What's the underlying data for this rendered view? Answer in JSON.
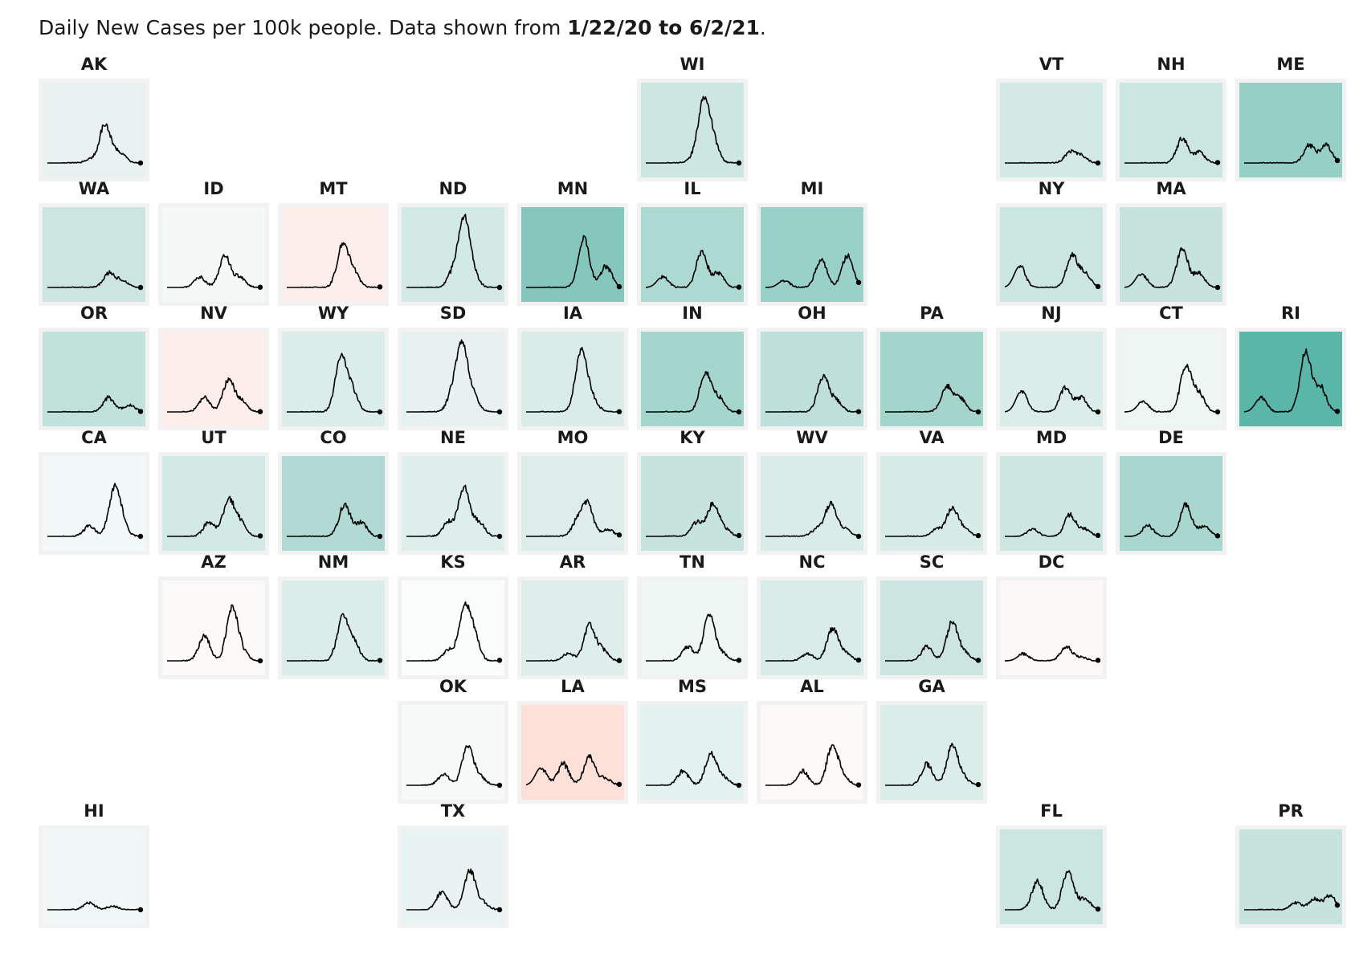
{
  "header": {
    "prefix": "Daily New Cases per 100k people. Data shown from ",
    "range": "1/22/20 to 6/2/21",
    "suffix": "."
  },
  "chart_data": {
    "type": "line",
    "layout": "tile-grid-map",
    "x_start": "1/22/20",
    "x_end": "6/2/21",
    "ylabel": "Daily New Cases per 100k people",
    "states": [
      {
        "id": "AK",
        "row": 0,
        "col": 0,
        "bg": "#e8f3f1",
        "peaks": [
          [
            0.46,
            0.05
          ],
          [
            0.62,
            0.55
          ],
          [
            0.78,
            0.15
          ]
        ]
      },
      {
        "id": "WI",
        "row": 0,
        "col": 5,
        "bg": "#cde6e1",
        "peaks": [
          [
            0.5,
            0.05
          ],
          [
            0.62,
            0.85
          ],
          [
            0.72,
            0.3
          ]
        ]
      },
      {
        "id": "VT",
        "row": 0,
        "col": 8,
        "bg": "#d3e9e5",
        "peaks": [
          [
            0.7,
            0.15
          ],
          [
            0.82,
            0.1
          ]
        ]
      },
      {
        "id": "NH",
        "row": 0,
        "col": 9,
        "bg": "#cbe5e0",
        "peaks": [
          [
            0.62,
            0.35
          ],
          [
            0.8,
            0.15
          ]
        ]
      },
      {
        "id": "ME",
        "row": 0,
        "col": 10,
        "bg": "#96cfc6",
        "peaks": [
          [
            0.7,
            0.25
          ],
          [
            0.88,
            0.25
          ]
        ]
      },
      {
        "id": "WA",
        "row": 1,
        "col": 0,
        "bg": "#cce5e0",
        "peaks": [
          [
            0.66,
            0.2
          ],
          [
            0.8,
            0.1
          ]
        ]
      },
      {
        "id": "ID",
        "row": 1,
        "col": 1,
        "bg": "#f4f9f8",
        "peaks": [
          [
            0.35,
            0.15
          ],
          [
            0.62,
            0.45
          ],
          [
            0.78,
            0.15
          ]
        ]
      },
      {
        "id": "MT",
        "row": 1,
        "col": 2,
        "bg": "#fdeeea",
        "peaks": [
          [
            0.6,
            0.6
          ],
          [
            0.72,
            0.2
          ]
        ]
      },
      {
        "id": "ND",
        "row": 1,
        "col": 3,
        "bg": "#d3e9e5",
        "peaks": [
          [
            0.5,
            0.2
          ],
          [
            0.62,
            0.95
          ],
          [
            0.72,
            0.15
          ]
        ]
      },
      {
        "id": "MN",
        "row": 1,
        "col": 4,
        "bg": "#85c7bd",
        "peaks": [
          [
            0.62,
            0.7
          ],
          [
            0.86,
            0.3
          ]
        ]
      },
      {
        "id": "IL",
        "row": 1,
        "col": 5,
        "bg": "#acd9d1",
        "peaks": [
          [
            0.18,
            0.15
          ],
          [
            0.6,
            0.5
          ],
          [
            0.78,
            0.2
          ]
        ]
      },
      {
        "id": "MI",
        "row": 1,
        "col": 6,
        "bg": "#99d1c8",
        "peaks": [
          [
            0.2,
            0.1
          ],
          [
            0.6,
            0.4
          ],
          [
            0.88,
            0.45
          ]
        ]
      },
      {
        "id": "NY",
        "row": 1,
        "col": 8,
        "bg": "#cbe5e0",
        "peaks": [
          [
            0.16,
            0.3
          ],
          [
            0.72,
            0.45
          ],
          [
            0.86,
            0.2
          ]
        ]
      },
      {
        "id": "MA",
        "row": 1,
        "col": 9,
        "bg": "#c6e3de",
        "peaks": [
          [
            0.18,
            0.2
          ],
          [
            0.62,
            0.55
          ],
          [
            0.8,
            0.2
          ]
        ]
      },
      {
        "id": "OR",
        "row": 2,
        "col": 0,
        "bg": "#c1e1db",
        "peaks": [
          [
            0.66,
            0.2
          ],
          [
            0.88,
            0.1
          ]
        ]
      },
      {
        "id": "NV",
        "row": 2,
        "col": 1,
        "bg": "#fdeeea",
        "peaks": [
          [
            0.4,
            0.2
          ],
          [
            0.66,
            0.45
          ],
          [
            0.8,
            0.15
          ]
        ]
      },
      {
        "id": "WY",
        "row": 2,
        "col": 2,
        "bg": "#dbede9",
        "peaks": [
          [
            0.58,
            0.75
          ],
          [
            0.7,
            0.3
          ]
        ]
      },
      {
        "id": "SD",
        "row": 2,
        "col": 3,
        "bg": "#e7f2f0",
        "peaks": [
          [
            0.5,
            0.25
          ],
          [
            0.6,
            0.9
          ],
          [
            0.72,
            0.2
          ]
        ]
      },
      {
        "id": "IA",
        "row": 2,
        "col": 4,
        "bg": "#d9ece8",
        "peaks": [
          [
            0.55,
            0.15
          ],
          [
            0.6,
            0.75
          ],
          [
            0.72,
            0.15
          ]
        ]
      },
      {
        "id": "IN",
        "row": 2,
        "col": 5,
        "bg": "#a5d6ce",
        "peaks": [
          [
            0.64,
            0.55
          ],
          [
            0.78,
            0.2
          ]
        ]
      },
      {
        "id": "OH",
        "row": 2,
        "col": 6,
        "bg": "#bfe0da",
        "peaks": [
          [
            0.62,
            0.5
          ],
          [
            0.76,
            0.15
          ]
        ]
      },
      {
        "id": "PA",
        "row": 2,
        "col": 7,
        "bg": "#a3d5cd",
        "peaks": [
          [
            0.66,
            0.35
          ],
          [
            0.8,
            0.2
          ]
        ]
      },
      {
        "id": "NJ",
        "row": 2,
        "col": 8,
        "bg": "#dbede9",
        "peaks": [
          [
            0.18,
            0.3
          ],
          [
            0.65,
            0.35
          ],
          [
            0.82,
            0.2
          ]
        ]
      },
      {
        "id": "CT",
        "row": 2,
        "col": 9,
        "bg": "#eef6f4",
        "peaks": [
          [
            0.2,
            0.15
          ],
          [
            0.66,
            0.65
          ],
          [
            0.8,
            0.25
          ]
        ]
      },
      {
        "id": "RI",
        "row": 2,
        "col": 10,
        "bg": "#5ab6a9",
        "peaks": [
          [
            0.18,
            0.2
          ],
          [
            0.66,
            0.85
          ],
          [
            0.82,
            0.35
          ]
        ]
      },
      {
        "id": "CA",
        "row": 3,
        "col": 0,
        "bg": "#f3f9f8",
        "peaks": [
          [
            0.45,
            0.15
          ],
          [
            0.72,
            0.65
          ],
          [
            0.8,
            0.15
          ]
        ]
      },
      {
        "id": "UT",
        "row": 3,
        "col": 1,
        "bg": "#d3e9e5",
        "peaks": [
          [
            0.45,
            0.2
          ],
          [
            0.66,
            0.5
          ],
          [
            0.78,
            0.2
          ]
        ]
      },
      {
        "id": "CO",
        "row": 3,
        "col": 2,
        "bg": "#b0dad3",
        "peaks": [
          [
            0.62,
            0.45
          ],
          [
            0.8,
            0.2
          ]
        ]
      },
      {
        "id": "NE",
        "row": 3,
        "col": 3,
        "bg": "#deeeeb",
        "peaks": [
          [
            0.45,
            0.2
          ],
          [
            0.62,
            0.7
          ],
          [
            0.78,
            0.2
          ]
        ]
      },
      {
        "id": "MO",
        "row": 3,
        "col": 4,
        "bg": "#dcedea",
        "peaks": [
          [
            0.55,
            0.2
          ],
          [
            0.66,
            0.45
          ],
          [
            0.88,
            0.1
          ]
        ]
      },
      {
        "id": "KY",
        "row": 3,
        "col": 5,
        "bg": "#c6e3de",
        "peaks": [
          [
            0.55,
            0.2
          ],
          [
            0.72,
            0.45
          ],
          [
            0.85,
            0.1
          ]
        ]
      },
      {
        "id": "WV",
        "row": 3,
        "col": 6,
        "bg": "#d9ece8",
        "peaks": [
          [
            0.55,
            0.1
          ],
          [
            0.7,
            0.45
          ],
          [
            0.85,
            0.1
          ]
        ]
      },
      {
        "id": "VA",
        "row": 3,
        "col": 7,
        "bg": "#d7ebe7",
        "peaks": [
          [
            0.55,
            0.1
          ],
          [
            0.72,
            0.4
          ],
          [
            0.85,
            0.1
          ]
        ]
      },
      {
        "id": "MD",
        "row": 3,
        "col": 8,
        "bg": "#cde6e1",
        "peaks": [
          [
            0.3,
            0.1
          ],
          [
            0.7,
            0.3
          ],
          [
            0.86,
            0.1
          ]
        ]
      },
      {
        "id": "DE",
        "row": 3,
        "col": 9,
        "bg": "#a8d7cf",
        "peaks": [
          [
            0.25,
            0.15
          ],
          [
            0.66,
            0.45
          ],
          [
            0.86,
            0.15
          ]
        ]
      },
      {
        "id": "AZ",
        "row": 4,
        "col": 1,
        "bg": "#fcf9f9",
        "peaks": [
          [
            0.4,
            0.35
          ],
          [
            0.7,
            0.75
          ],
          [
            0.82,
            0.1
          ]
        ]
      },
      {
        "id": "NM",
        "row": 4,
        "col": 2,
        "bg": "#dbede9",
        "peaks": [
          [
            0.6,
            0.6
          ],
          [
            0.72,
            0.25
          ]
        ]
      },
      {
        "id": "KS",
        "row": 4,
        "col": 3,
        "bg": "#fbfcfc",
        "peaks": [
          [
            0.45,
            0.15
          ],
          [
            0.62,
            0.7
          ],
          [
            0.72,
            0.35
          ]
        ]
      },
      {
        "id": "AR",
        "row": 4,
        "col": 4,
        "bg": "#ddeeeb",
        "peaks": [
          [
            0.45,
            0.1
          ],
          [
            0.68,
            0.5
          ],
          [
            0.82,
            0.15
          ]
        ]
      },
      {
        "id": "TN",
        "row": 4,
        "col": 5,
        "bg": "#eff7f5",
        "peaks": [
          [
            0.45,
            0.2
          ],
          [
            0.68,
            0.65
          ],
          [
            0.82,
            0.1
          ]
        ]
      },
      {
        "id": "NC",
        "row": 4,
        "col": 6,
        "bg": "#d9ece8",
        "peaks": [
          [
            0.45,
            0.1
          ],
          [
            0.72,
            0.45
          ],
          [
            0.86,
            0.1
          ]
        ]
      },
      {
        "id": "SC",
        "row": 4,
        "col": 7,
        "bg": "#cce5e0",
        "peaks": [
          [
            0.45,
            0.2
          ],
          [
            0.72,
            0.55
          ],
          [
            0.86,
            0.1
          ]
        ]
      },
      {
        "id": "DC",
        "row": 4,
        "col": 8,
        "bg": "#fcf8f8",
        "peaks": [
          [
            0.2,
            0.1
          ],
          [
            0.66,
            0.2
          ],
          [
            0.82,
            0.05
          ]
        ]
      },
      {
        "id": "OK",
        "row": 5,
        "col": 3,
        "bg": "#f6f9f8",
        "peaks": [
          [
            0.4,
            0.15
          ],
          [
            0.66,
            0.55
          ],
          [
            0.8,
            0.1
          ]
        ]
      },
      {
        "id": "LA",
        "row": 5,
        "col": 4,
        "bg": "#fde0d8",
        "peaks": [
          [
            0.16,
            0.25
          ],
          [
            0.4,
            0.3
          ],
          [
            0.68,
            0.4
          ],
          [
            0.85,
            0.1
          ]
        ]
      },
      {
        "id": "MS",
        "row": 5,
        "col": 5,
        "bg": "#e3f1ef",
        "peaks": [
          [
            0.4,
            0.2
          ],
          [
            0.7,
            0.45
          ],
          [
            0.84,
            0.1
          ]
        ]
      },
      {
        "id": "AL",
        "row": 5,
        "col": 6,
        "bg": "#fdf9f8",
        "peaks": [
          [
            0.4,
            0.2
          ],
          [
            0.72,
            0.55
          ],
          [
            0.84,
            0.1
          ]
        ]
      },
      {
        "id": "GA",
        "row": 5,
        "col": 7,
        "bg": "#dbede9",
        "peaks": [
          [
            0.45,
            0.3
          ],
          [
            0.72,
            0.55
          ],
          [
            0.84,
            0.1
          ]
        ]
      },
      {
        "id": "HI",
        "row": 6,
        "col": 0,
        "bg": "#f0f7f6",
        "peaks": [
          [
            0.45,
            0.1
          ],
          [
            0.7,
            0.05
          ]
        ]
      },
      {
        "id": "TX",
        "row": 6,
        "col": 3,
        "bg": "#e9f3f1",
        "peaks": [
          [
            0.38,
            0.25
          ],
          [
            0.68,
            0.55
          ],
          [
            0.82,
            0.1
          ]
        ]
      },
      {
        "id": "FL",
        "row": 6,
        "col": 8,
        "bg": "#cbe5e0",
        "peaks": [
          [
            0.35,
            0.4
          ],
          [
            0.68,
            0.55
          ],
          [
            0.86,
            0.15
          ]
        ]
      },
      {
        "id": "PR",
        "row": 6,
        "col": 10,
        "bg": "#c6e3de",
        "peaks": [
          [
            0.55,
            0.1
          ],
          [
            0.75,
            0.15
          ],
          [
            0.92,
            0.2
          ]
        ]
      }
    ]
  }
}
